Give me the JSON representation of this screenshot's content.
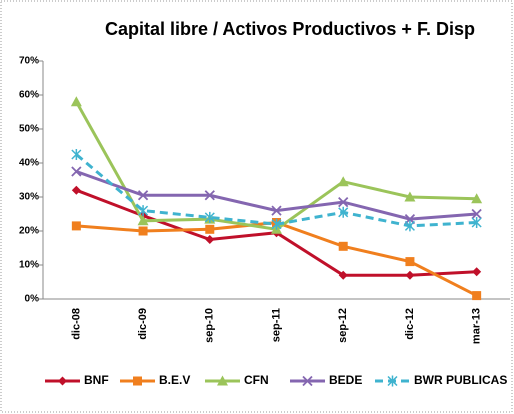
{
  "chart_data": {
    "type": "line",
    "title": "Capital libre / Activos Productivos + F. Disp",
    "categories": [
      "dic-08",
      "dic-09",
      "sep-10",
      "sep-11",
      "sep-12",
      "dic-12",
      "mar-13"
    ],
    "ylim": [
      0,
      70
    ],
    "yticks": [
      {
        "value": 0,
        "label": "0%"
      },
      {
        "value": 10,
        "label": "10%"
      },
      {
        "value": 20,
        "label": "20%"
      },
      {
        "value": 30,
        "label": "30%"
      },
      {
        "value": 40,
        "label": "40%"
      },
      {
        "value": 50,
        "label": "50%"
      },
      {
        "value": 60,
        "label": "60%"
      },
      {
        "value": 70,
        "label": "70%"
      }
    ],
    "legend": "bottom",
    "series": [
      {
        "name": "BNF",
        "color": "#c0102a",
        "marker": "diamond",
        "values": [
          32,
          24.5,
          17.5,
          19.5,
          7,
          7,
          8
        ]
      },
      {
        "name": "B.E.V",
        "color": "#f07f1e",
        "marker": "square",
        "values": [
          21.5,
          20,
          20.5,
          22.5,
          15.5,
          11,
          1
        ]
      },
      {
        "name": "CFN",
        "color": "#9bc45a",
        "marker": "triangle",
        "values": [
          58,
          23,
          23.5,
          20.5,
          34.5,
          30,
          29.5
        ]
      },
      {
        "name": "BEDE",
        "color": "#8466b0",
        "marker": "x",
        "values": [
          37.5,
          30.5,
          30.5,
          26,
          28.5,
          23.5,
          25
        ]
      },
      {
        "name": "BWR PUBLICAS",
        "color": "#3fb3cf",
        "marker": "star",
        "dashed": true,
        "values": [
          42.5,
          26,
          24,
          22,
          25.5,
          21.5,
          22.5
        ]
      }
    ]
  }
}
